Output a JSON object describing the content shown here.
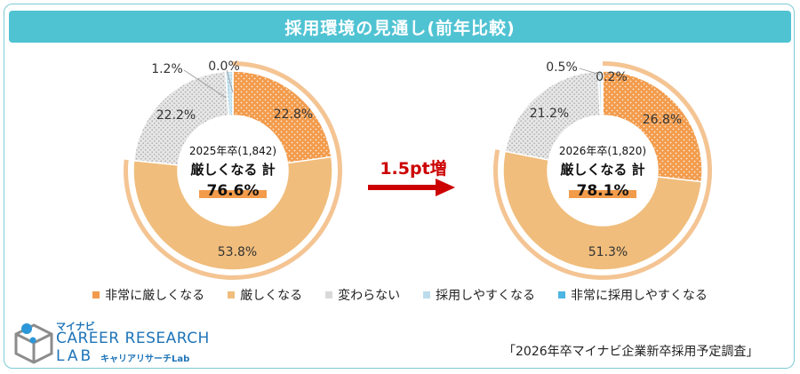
{
  "title": "採用環境の見通し(前年比較)",
  "arrow_label": "1.5pt増",
  "colors": {
    "very_severe": "#f29b4b",
    "severe": "#f0bd7c",
    "unchanged": "#d9d9d9",
    "easier": "#bcdcec",
    "very_easy": "#4cb5e2",
    "arrow": "#cc0000",
    "title_bg": "#50c3d3",
    "outer_ring": "#f4c493"
  },
  "legend": [
    {
      "label": "非常に厳しくなる",
      "color": "#f29b4b"
    },
    {
      "label": "厳しくなる",
      "color": "#f0bd7c"
    },
    {
      "label": "変わらない",
      "color": "#d9d9d9"
    },
    {
      "label": "採用しやすくなる",
      "color": "#bcdcec"
    },
    {
      "label": "非常に採用しやすくなる",
      "color": "#4cb5e2"
    }
  ],
  "chart_data": [
    {
      "type": "pie",
      "subtitle": "2025年卒(1,842)",
      "center_label": "厳しくなる 計",
      "center_value": "76.6%",
      "categories": [
        "非常に厳しくなる",
        "厳しくなる",
        "変わらない",
        "採用しやすくなる",
        "非常に採用しやすくなる"
      ],
      "values": [
        22.8,
        53.8,
        22.2,
        1.2,
        0.0
      ],
      "labels": [
        "22.8%",
        "53.8%",
        "22.2%",
        "1.2%",
        "0.0%"
      ]
    },
    {
      "type": "pie",
      "subtitle": "2026年卒(1,820)",
      "center_label": "厳しくなる 計",
      "center_value": "78.1%",
      "categories": [
        "非常に厳しくなる",
        "厳しくなる",
        "変わらない",
        "採用しやすくなる",
        "非常に採用しやすくなる"
      ],
      "values": [
        26.8,
        51.3,
        21.2,
        0.5,
        0.2
      ],
      "labels": [
        "26.8%",
        "51.3%",
        "21.2%",
        "0.5%",
        "0.2%"
      ]
    }
  ],
  "logo": {
    "small": "マイナビ",
    "career": "CAREER RESEARCH",
    "lab": "LAB",
    "sub": "キャリアリサーチLab"
  },
  "source": "「2026年卒マイナビ企業新卒採用予定調査」"
}
